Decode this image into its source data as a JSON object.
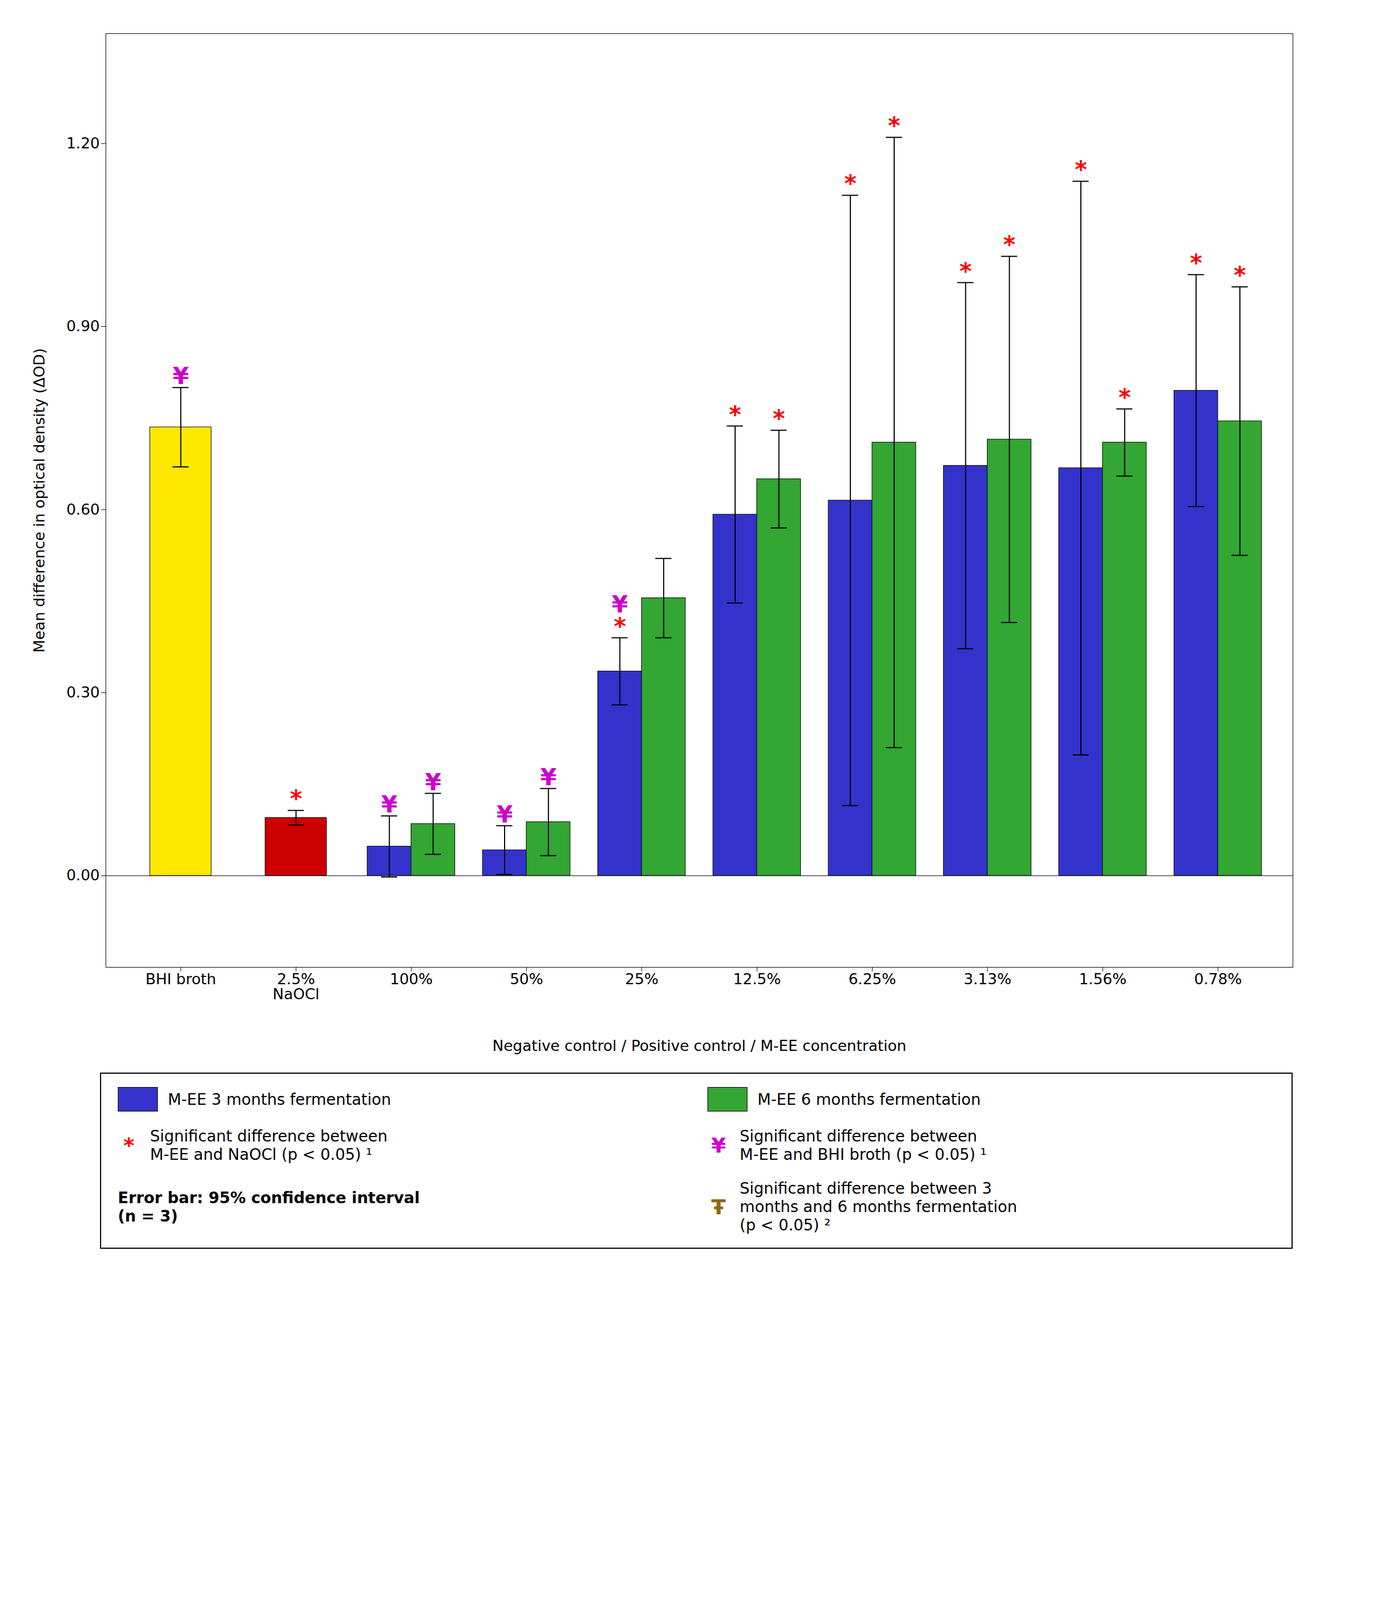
{
  "chart_data": {
    "type": "bar",
    "categories": [
      "BHI broth",
      "2.5%\nNaOCl",
      "100%",
      "50%",
      "25%",
      "12.5%",
      "6.25%",
      "3.13%",
      "1.56%",
      "0.78%"
    ],
    "series": [
      {
        "name": "M-EE 3 months fermentation",
        "color": "#3333CC",
        "values": [
          null,
          null,
          0.048,
          0.042,
          0.335,
          0.592,
          0.615,
          0.672,
          0.668,
          0.795
        ],
        "errors": [
          null,
          null,
          0.05,
          0.04,
          0.055,
          0.145,
          0.5,
          0.3,
          0.47,
          0.19
        ],
        "annotations": [
          null,
          null,
          [
            "¥"
          ],
          [
            "¥"
          ],
          [
            "*",
            "¥"
          ],
          [
            "*"
          ],
          [
            "*"
          ],
          [
            "*"
          ],
          [
            "*"
          ],
          [
            "*"
          ]
        ]
      },
      {
        "name": "M-EE 6 months fermentation",
        "color": "#33A633",
        "values": [
          null,
          null,
          0.085,
          0.088,
          0.455,
          0.65,
          0.71,
          0.715,
          0.71,
          0.745
        ],
        "errors": [
          null,
          null,
          0.05,
          0.055,
          0.065,
          0.08,
          0.5,
          0.3,
          0.055,
          0.22
        ],
        "annotations": [
          null,
          null,
          [
            "¥"
          ],
          [
            "¥"
          ],
          [],
          [
            "*"
          ],
          [
            "*"
          ],
          [
            "*"
          ],
          [
            "*"
          ],
          [
            "*"
          ]
        ]
      },
      {
        "colors": [
          "#FFE800",
          "#CC0000",
          null,
          null,
          null,
          null,
          null,
          null,
          null,
          null
        ],
        "values": [
          0.735,
          0.095,
          null,
          null,
          null,
          null,
          null,
          null,
          null,
          null
        ],
        "errors": [
          0.065,
          0.012,
          null,
          null,
          null,
          null,
          null,
          null,
          null,
          null
        ],
        "annotations": [
          [
            "¥"
          ],
          [
            "*"
          ],
          null,
          null,
          null,
          null,
          null,
          null,
          null,
          null
        ]
      }
    ],
    "ylim": [
      -0.15,
      1.38
    ],
    "yticks": [
      {
        "value": 0.0,
        "label": "0.00"
      },
      {
        "value": 0.3,
        "label": "0.30"
      },
      {
        "value": 0.6,
        "label": "0.60"
      },
      {
        "value": 0.9,
        "label": "0.90"
      },
      {
        "value": 1.2,
        "label": "1.20"
      }
    ],
    "ylabel": "Mean difference in optical density (ΔOD)",
    "xlabel": "Negative control / Positive control / M-EE concentration",
    "legend": "bottom",
    "legend_notes": [
      {
        "symbol": "*",
        "color": "red",
        "text": "Significant difference between\nM-EE and NaOCl (p < 0.05) ¹"
      },
      {
        "symbol": "¥",
        "color": "#CC00CC",
        "text": "Significant difference between\nM-EE and BHI broth (p < 0.05) ¹"
      },
      {
        "text": "Error bar: 95% confidence interval\n(n = 3)"
      },
      {
        "symbol": "Ŧ",
        "color": "#8B6914",
        "text": "Significant difference between 3\nmonths and 6 months fermentation\n(p < 0.05) ²"
      }
    ]
  }
}
